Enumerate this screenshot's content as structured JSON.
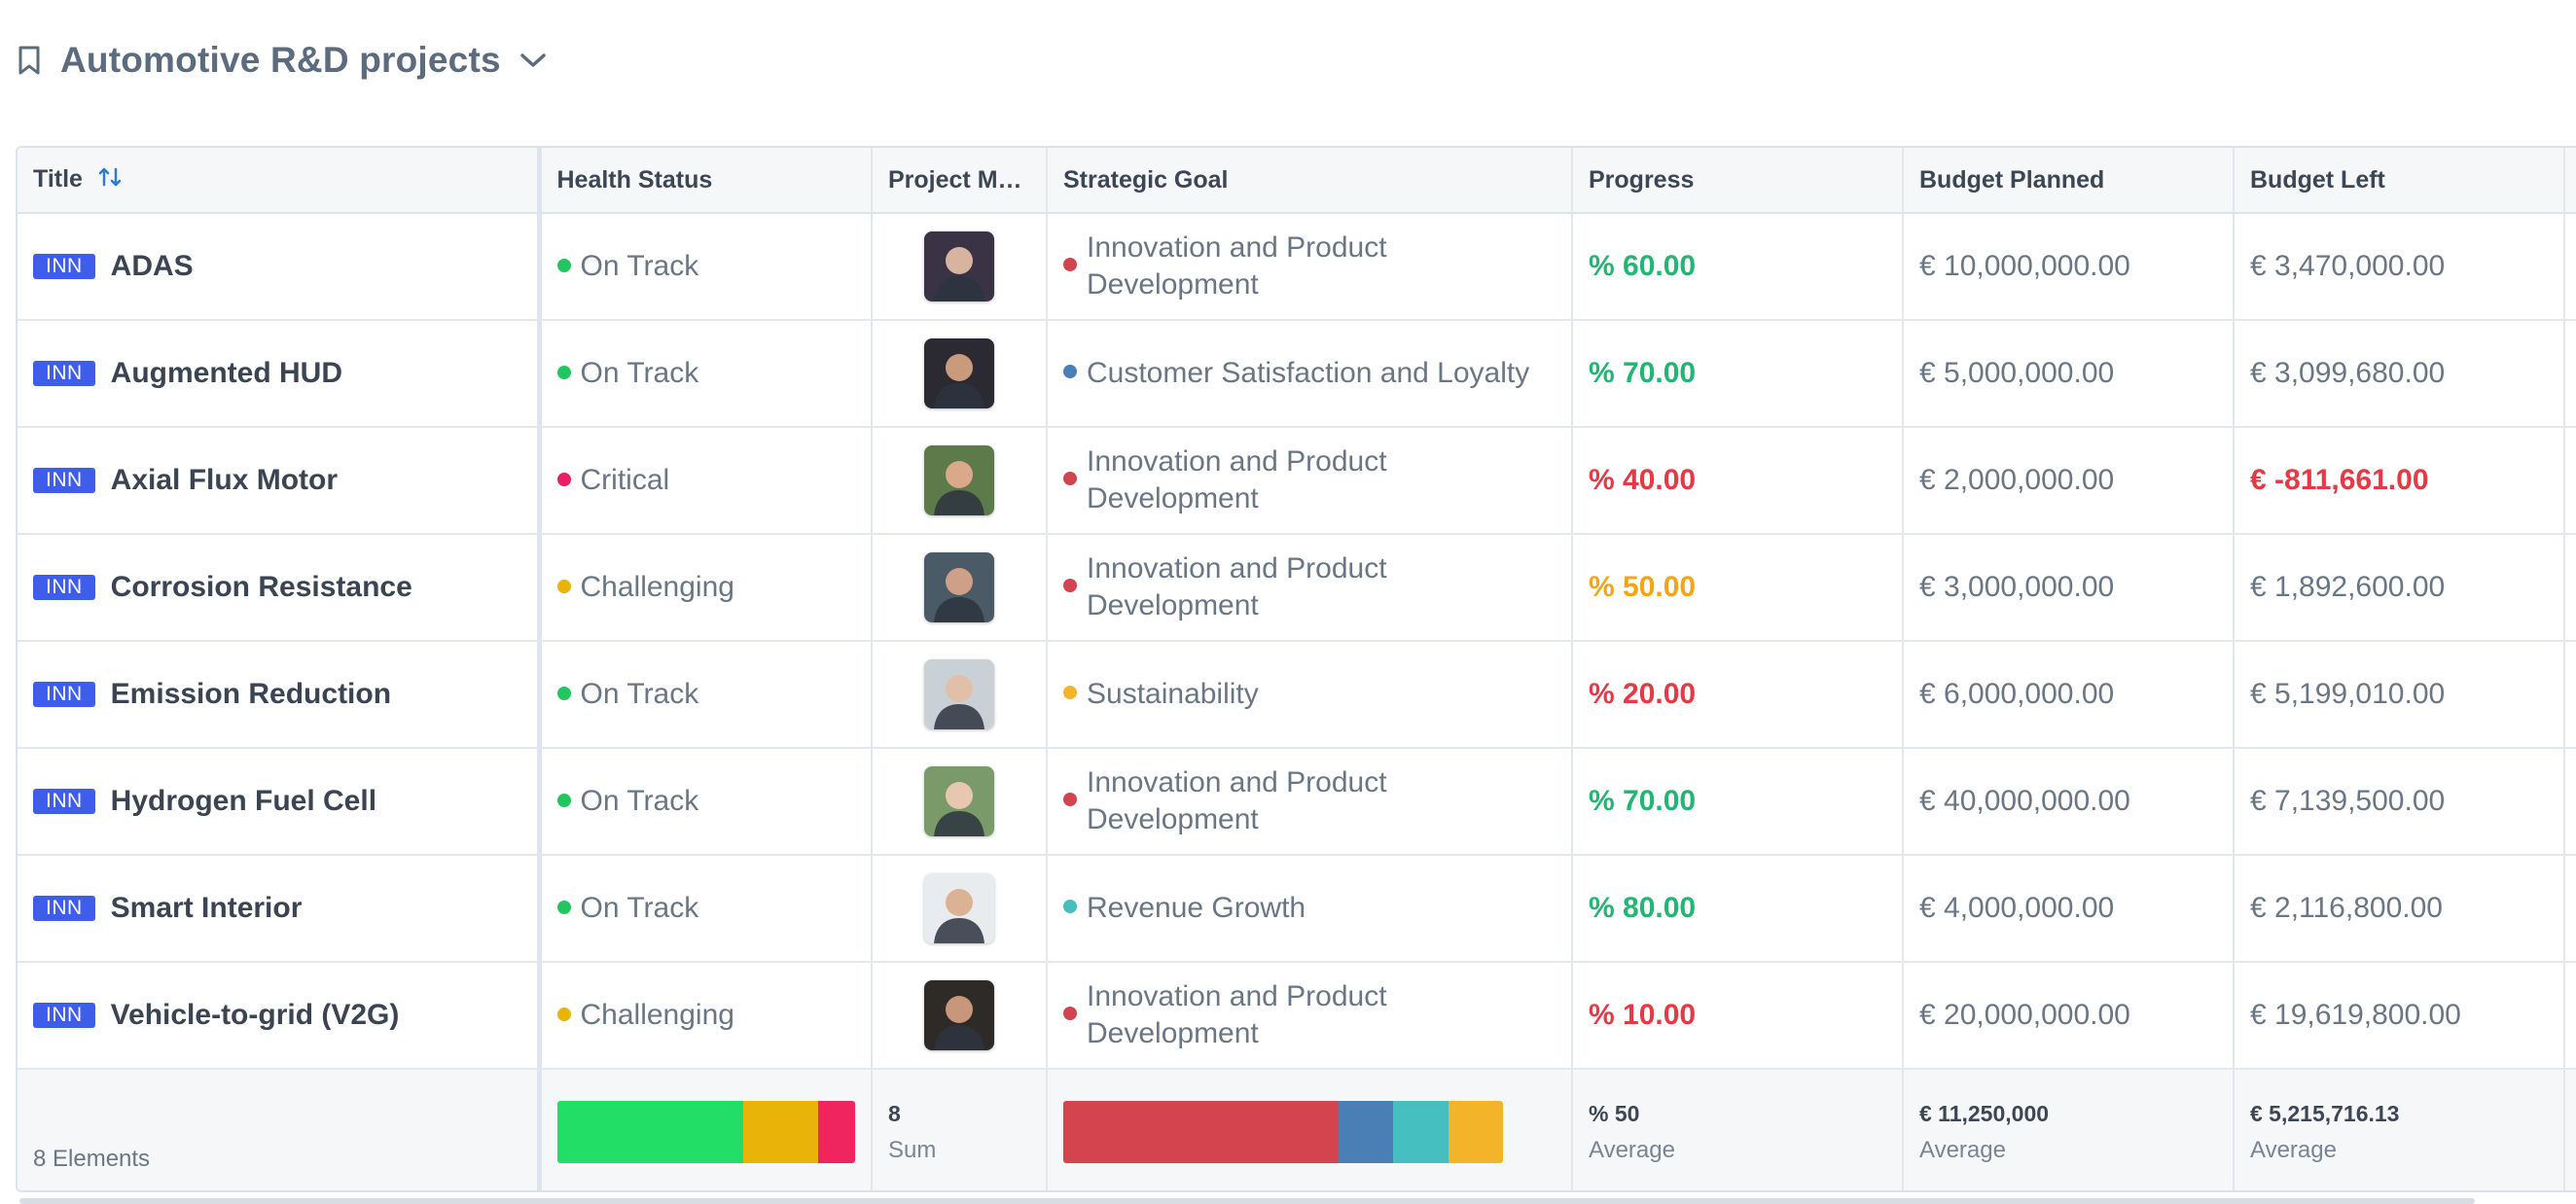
{
  "header": {
    "title": "Automotive R&D projects"
  },
  "columns": [
    "Title",
    "Health Status",
    "Project Ma...",
    "Strategic Goal",
    "Progress",
    "Budget Planned",
    "Budget Left"
  ],
  "rows": [
    {
      "tag": "INN",
      "title": "ADAS",
      "health": "On Track",
      "health_color": "#22c55e",
      "avatar_bg": "#3a3346",
      "avatar_skin": "#d8b4a0",
      "goal": "Innovation and Product Development",
      "goal_color": "#d0454f",
      "progress": "% 60.00",
      "progress_color": "#22b573",
      "budget_planned": "€ 10,000,000.00",
      "budget_left": "€ 3,470,000.00",
      "left_color": "#6b7685"
    },
    {
      "tag": "INN",
      "title": "Augmented HUD",
      "health": "On Track",
      "health_color": "#22c55e",
      "avatar_bg": "#2b2a33",
      "avatar_skin": "#c99a7c",
      "goal": "Customer Satisfaction and Loyalty",
      "goal_color": "#4a7fb5",
      "progress": "% 70.00",
      "progress_color": "#22b573",
      "budget_planned": "€ 5,000,000.00",
      "budget_left": "€ 3,099,680.00",
      "left_color": "#6b7685"
    },
    {
      "tag": "INN",
      "title": "Axial Flux Motor",
      "health": "Critical",
      "health_color": "#e91e63",
      "avatar_bg": "#5d7a4a",
      "avatar_skin": "#d9a98a",
      "goal": "Innovation and Product Development",
      "goal_color": "#d0454f",
      "progress": "% 40.00",
      "progress_color": "#e53945",
      "budget_planned": "€ 2,000,000.00",
      "budget_left": "€ -811,661.00",
      "left_color": "#e53945"
    },
    {
      "tag": "INN",
      "title": "Corrosion Resistance",
      "health": "Challenging",
      "health_color": "#eab308",
      "avatar_bg": "#4a5a66",
      "avatar_skin": "#cfa088",
      "goal": "Innovation and Product Development",
      "goal_color": "#d0454f",
      "progress": "% 50.00",
      "progress_color": "#f2a516",
      "budget_planned": "€ 3,000,000.00",
      "budget_left": "€ 1,892,600.00",
      "left_color": "#6b7685"
    },
    {
      "tag": "INN",
      "title": "Emission Reduction",
      "health": "On Track",
      "health_color": "#22c55e",
      "avatar_bg": "#c9d0d6",
      "avatar_skin": "#e2bfa8",
      "goal": "Sustainability",
      "goal_color": "#f2b42a",
      "progress": "% 20.00",
      "progress_color": "#e53945",
      "budget_planned": "€ 6,000,000.00",
      "budget_left": "€ 5,199,010.00",
      "left_color": "#6b7685"
    },
    {
      "tag": "INN",
      "title": "Hydrogen Fuel Cell",
      "health": "On Track",
      "health_color": "#22c55e",
      "avatar_bg": "#7a9a6a",
      "avatar_skin": "#e8c7b0",
      "goal": "Innovation and Product Development",
      "goal_color": "#d0454f",
      "progress": "% 70.00",
      "progress_color": "#22b573",
      "budget_planned": "€ 40,000,000.00",
      "budget_left": "€ 7,139,500.00",
      "left_color": "#6b7685"
    },
    {
      "tag": "INN",
      "title": "Smart Interior",
      "health": "On Track",
      "health_color": "#22c55e",
      "avatar_bg": "#e9ecef",
      "avatar_skin": "#dcb294",
      "goal": "Revenue Growth",
      "goal_color": "#45bfbf",
      "progress": "% 80.00",
      "progress_color": "#22b573",
      "budget_planned": "€ 4,000,000.00",
      "budget_left": "€ 2,116,800.00",
      "left_color": "#6b7685"
    },
    {
      "tag": "INN",
      "title": "Vehicle-to-grid (V2G)",
      "health": "Challenging",
      "health_color": "#eab308",
      "avatar_bg": "#2e2a28",
      "avatar_skin": "#c8967a",
      "goal": "Innovation and Product Development",
      "goal_color": "#d0454f",
      "progress": "% 10.00",
      "progress_color": "#e53945",
      "budget_planned": "€ 20,000,000.00",
      "budget_left": "€ 19,619,800.00",
      "left_color": "#6b7685"
    }
  ],
  "footer": {
    "elements": "8 Elements",
    "health_distribution": [
      {
        "label": "On Track",
        "count": 5,
        "color": "#22dd66"
      },
      {
        "label": "Challenging",
        "count": 2,
        "color": "#eab308"
      },
      {
        "label": "Critical",
        "count": 1,
        "color": "#f0245e"
      }
    ],
    "pm_value": "8",
    "pm_label": "Sum",
    "goal_distribution": [
      {
        "label": "Innovation and Product Development",
        "count": 5,
        "color": "#d4444f"
      },
      {
        "label": "Customer Satisfaction and Loyalty",
        "count": 1,
        "color": "#4a7fb5"
      },
      {
        "label": "Revenue Growth",
        "count": 1,
        "color": "#45bfbf"
      },
      {
        "label": "Sustainability",
        "count": 1,
        "color": "#f4b42a"
      }
    ],
    "progress_value": "% 50",
    "progress_label": "Average",
    "planned_value": "€ 11,250,000",
    "planned_label": "Average",
    "left_value": "€ 5,215,716.13",
    "left_label": "Average"
  }
}
